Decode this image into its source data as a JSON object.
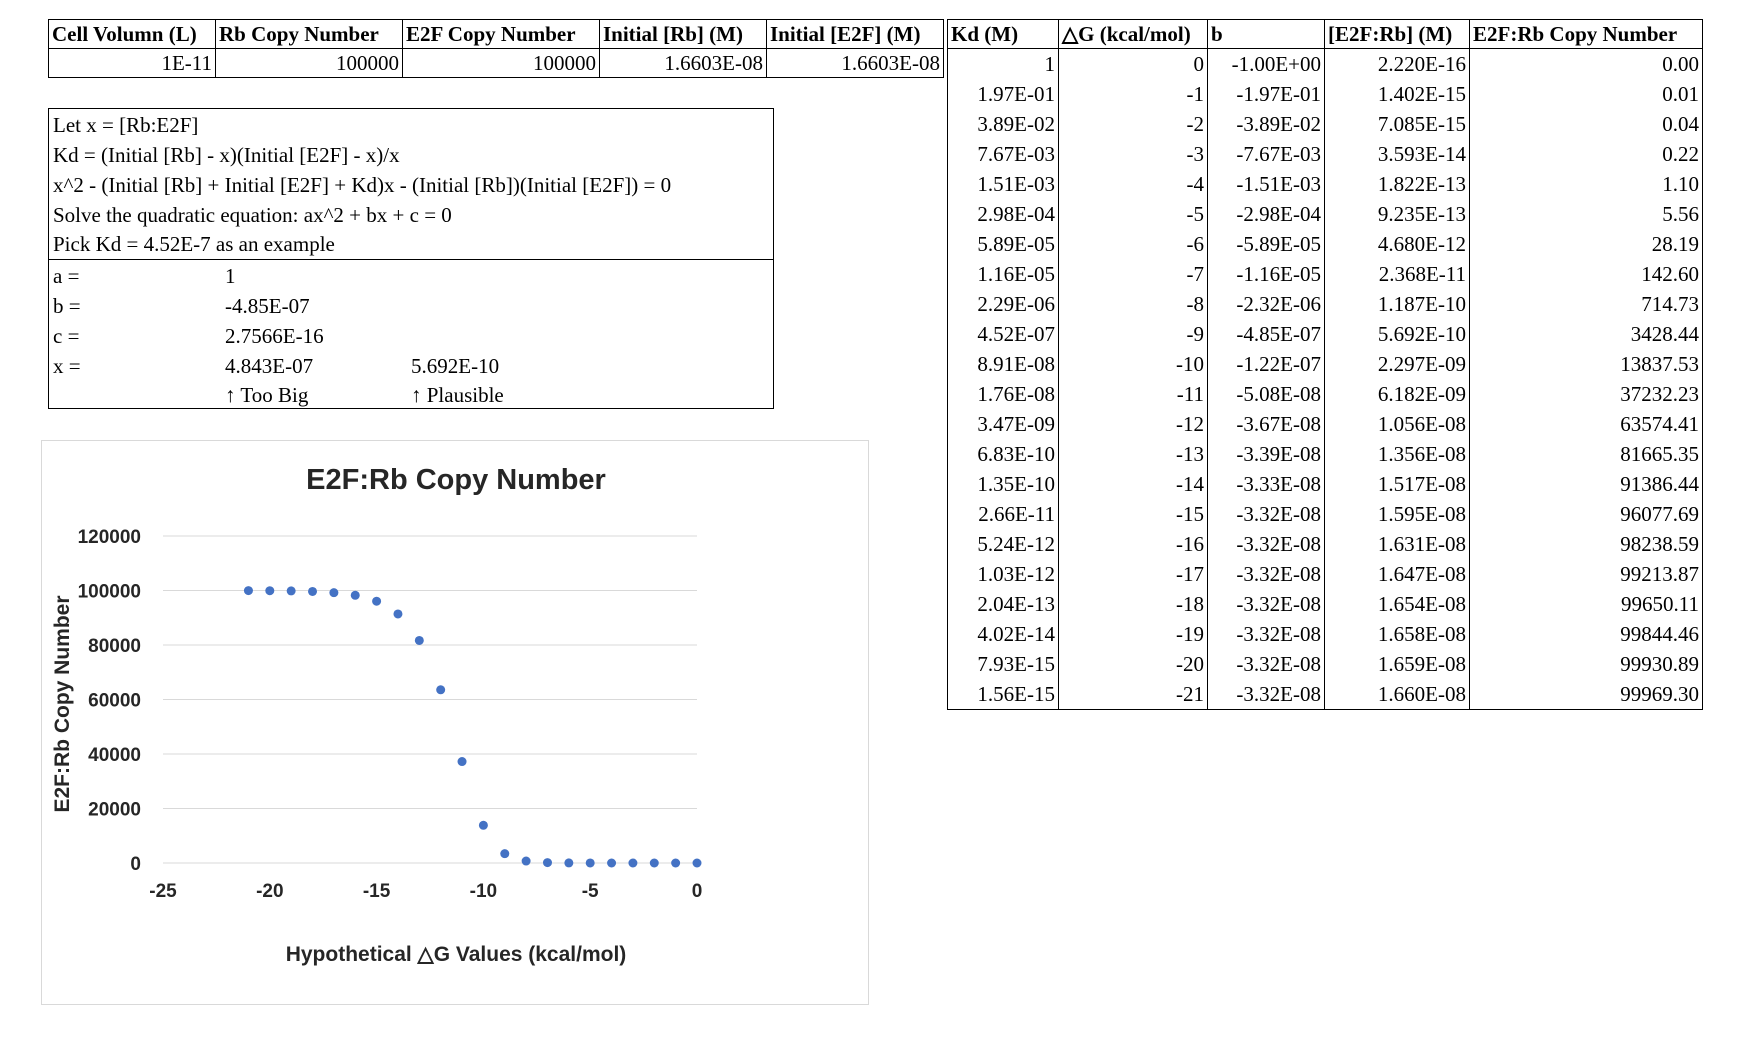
{
  "params": {
    "headers": [
      "Cell Volumn (L)",
      "Rb Copy Number",
      "E2F Copy Number",
      "Initial [Rb] (M)",
      "Initial [E2F] (M)"
    ],
    "values": [
      "1E-11",
      "100000",
      "100000",
      "1.6603E-08",
      "1.6603E-08"
    ]
  },
  "notes": {
    "lines": [
      "Let x = [Rb:E2F]",
      "Kd = (Initial [Rb] - x)(Initial [E2F] - x)/x",
      "x^2 - (Initial [Rb] + Initial [E2F] + Kd)x - (Initial [Rb])(Initial [E2F]) = 0",
      "Solve the quadratic equation: ax^2 + bx + c = 0",
      "Pick Kd = 4.52E-7 as an example"
    ],
    "a_label": "a =",
    "a_value": "1",
    "b_label": "b =",
    "b_value": "-4.85E-07",
    "c_label": "c =",
    "c_value": "2.7566E-16",
    "x_label": "x =",
    "x_value1": "4.843E-07",
    "x_value2": "5.692E-10",
    "note1": "↑ Too Big",
    "note2": "↑ Plausible"
  },
  "results": {
    "headers": [
      "Kd (M)",
      "△G (kcal/mol)",
      "b",
      "[E2F:Rb] (M)",
      "E2F:Rb Copy Number"
    ],
    "rows": [
      [
        "1",
        "0",
        "-1.00E+00",
        "2.220E-16",
        "0.00"
      ],
      [
        "1.97E-01",
        "-1",
        "-1.97E-01",
        "1.402E-15",
        "0.01"
      ],
      [
        "3.89E-02",
        "-2",
        "-3.89E-02",
        "7.085E-15",
        "0.04"
      ],
      [
        "7.67E-03",
        "-3",
        "-7.67E-03",
        "3.593E-14",
        "0.22"
      ],
      [
        "1.51E-03",
        "-4",
        "-1.51E-03",
        "1.822E-13",
        "1.10"
      ],
      [
        "2.98E-04",
        "-5",
        "-2.98E-04",
        "9.235E-13",
        "5.56"
      ],
      [
        "5.89E-05",
        "-6",
        "-5.89E-05",
        "4.680E-12",
        "28.19"
      ],
      [
        "1.16E-05",
        "-7",
        "-1.16E-05",
        "2.368E-11",
        "142.60"
      ],
      [
        "2.29E-06",
        "-8",
        "-2.32E-06",
        "1.187E-10",
        "714.73"
      ],
      [
        "4.52E-07",
        "-9",
        "-4.85E-07",
        "5.692E-10",
        "3428.44"
      ],
      [
        "8.91E-08",
        "-10",
        "-1.22E-07",
        "2.297E-09",
        "13837.53"
      ],
      [
        "1.76E-08",
        "-11",
        "-5.08E-08",
        "6.182E-09",
        "37232.23"
      ],
      [
        "3.47E-09",
        "-12",
        "-3.67E-08",
        "1.056E-08",
        "63574.41"
      ],
      [
        "6.83E-10",
        "-13",
        "-3.39E-08",
        "1.356E-08",
        "81665.35"
      ],
      [
        "1.35E-10",
        "-14",
        "-3.33E-08",
        "1.517E-08",
        "91386.44"
      ],
      [
        "2.66E-11",
        "-15",
        "-3.32E-08",
        "1.595E-08",
        "96077.69"
      ],
      [
        "5.24E-12",
        "-16",
        "-3.32E-08",
        "1.631E-08",
        "98238.59"
      ],
      [
        "1.03E-12",
        "-17",
        "-3.32E-08",
        "1.647E-08",
        "99213.87"
      ],
      [
        "2.04E-13",
        "-18",
        "-3.32E-08",
        "1.654E-08",
        "99650.11"
      ],
      [
        "4.02E-14",
        "-19",
        "-3.32E-08",
        "1.658E-08",
        "99844.46"
      ],
      [
        "7.93E-15",
        "-20",
        "-3.32E-08",
        "1.659E-08",
        "99930.89"
      ],
      [
        "1.56E-15",
        "-21",
        "-3.32E-08",
        "1.660E-08",
        "99969.30"
      ]
    ]
  },
  "chart_data": {
    "type": "scatter",
    "title": "E2F:Rb Copy Number",
    "xlabel": "Hypothetical △G Values (kcal/mol)",
    "ylabel": "E2F:Rb Copy Number",
    "xlim": [
      -25,
      0
    ],
    "ylim": [
      0,
      120000
    ],
    "xticks": [
      -25,
      -20,
      -15,
      -10,
      -5,
      0
    ],
    "yticks": [
      0,
      20000,
      40000,
      60000,
      80000,
      100000,
      120000
    ],
    "grid": "horizontal",
    "color": "#4472C4",
    "x": [
      0,
      -1,
      -2,
      -3,
      -4,
      -5,
      -6,
      -7,
      -8,
      -9,
      -10,
      -11,
      -12,
      -13,
      -14,
      -15,
      -16,
      -17,
      -18,
      -19,
      -20,
      -21
    ],
    "y": [
      0,
      0.01,
      0.04,
      0.22,
      1.1,
      5.56,
      28.19,
      142.6,
      714.73,
      3428.44,
      13837.53,
      37232.23,
      63574.41,
      81665.35,
      91386.44,
      96077.69,
      98238.59,
      99213.87,
      99650.11,
      99844.46,
      99930.89,
      99969.3
    ]
  }
}
